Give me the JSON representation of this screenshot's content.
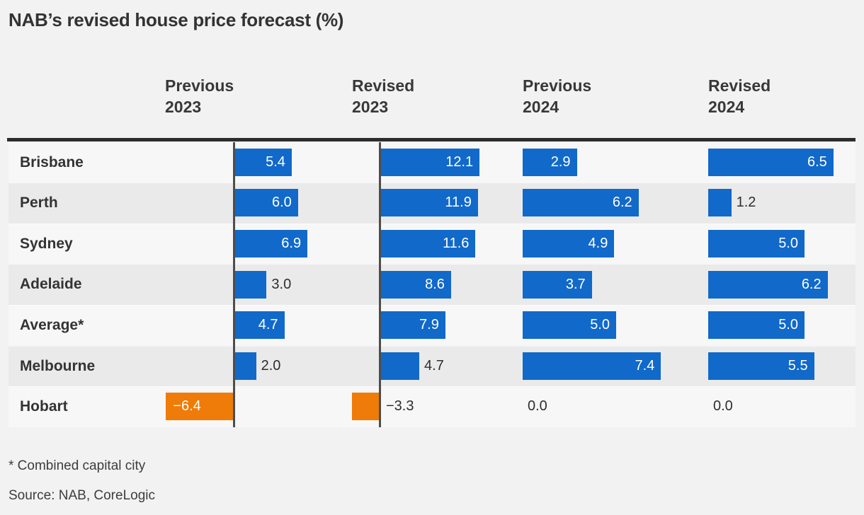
{
  "title": "NAB’s revised house price forecast (%)",
  "footnote": "* Combined capital city",
  "source": "Source: NAB, CoreLogic",
  "chart_data": {
    "type": "bar",
    "orientation": "horizontal",
    "title": "NAB’s revised house price forecast (%)",
    "categories": [
      "Brisbane",
      "Perth",
      "Sydney",
      "Adelaide",
      "Average*",
      "Melbourne",
      "Hobart"
    ],
    "series": [
      {
        "name": "Previous 2023",
        "values": [
          5.4,
          6.0,
          6.9,
          3.0,
          4.7,
          2.0,
          -6.4
        ]
      },
      {
        "name": "Revised 2023",
        "values": [
          12.1,
          11.9,
          11.6,
          8.6,
          7.9,
          4.7,
          -3.3
        ]
      },
      {
        "name": "Previous 2024",
        "values": [
          2.9,
          6.2,
          4.9,
          3.7,
          5.0,
          7.4,
          0.0
        ]
      },
      {
        "name": "Revised 2024",
        "values": [
          6.5,
          1.2,
          5.0,
          6.2,
          5.0,
          5.5,
          0.0
        ]
      }
    ],
    "column_headers": [
      {
        "line1": "Previous",
        "line2": "2023"
      },
      {
        "line1": "Revised",
        "line2": "2023"
      },
      {
        "line1": "Previous",
        "line2": "2024"
      },
      {
        "line1": "Revised",
        "line2": "2024"
      }
    ],
    "column_ranges": [
      [
        -6.4,
        6.9
      ],
      [
        -3.3,
        12.1
      ],
      [
        0.0,
        7.4
      ],
      [
        0.0,
        6.5
      ]
    ],
    "value_decimals": 1,
    "colors": {
      "positive_bar": "#1169c9",
      "negative_bar": "#ef7b08",
      "inside_label": "#ffffff",
      "outside_label": "#2e2e2e"
    },
    "legend": "none",
    "grid": "off",
    "baselines_drawn_for_columns": [
      "Previous 2023",
      "Revised 2023"
    ]
  }
}
